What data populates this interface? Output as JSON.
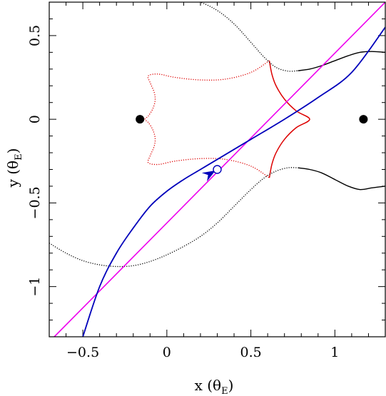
{
  "chart_data": {
    "type": "scatter",
    "title": "",
    "xlabel": "x (θ_E)",
    "ylabel": "y (θ_E)",
    "xlabel_parts": {
      "main": "x (θ",
      "sub": "E",
      "close": ")"
    },
    "ylabel_parts": {
      "main": "y (θ",
      "sub": "E",
      "close": ")"
    },
    "xlim": [
      -0.7,
      1.3
    ],
    "ylim": [
      -1.3,
      0.7
    ],
    "x_ticks": [
      {
        "value": -0.5,
        "label": "−0.5"
      },
      {
        "value": 0,
        "label": "0"
      },
      {
        "value": 0.5,
        "label": "0.5"
      },
      {
        "value": 1,
        "label": "1"
      }
    ],
    "y_ticks": [
      {
        "value": 0.5,
        "label": "0.5"
      },
      {
        "value": 0,
        "label": "0"
      },
      {
        "value": -0.5,
        "label": "−0.5"
      },
      {
        "value": -1,
        "label": "−1"
      }
    ],
    "grid": false,
    "lenses": [
      {
        "x": -0.16,
        "y": 0.0
      },
      {
        "x": 1.17,
        "y": 0.0
      }
    ],
    "source_position": {
      "x": 0.3,
      "y": -0.3
    },
    "colors": {
      "caustic": "#dd0000",
      "critical_curve": "#000000",
      "trajectory": "#0000bb",
      "straight_line": "#ee00ee",
      "lens": "#000000"
    },
    "series": [
      {
        "kind": "caustic",
        "solid_points": [
          [
            0.61,
            0.35
          ],
          [
            0.625,
            0.27
          ],
          [
            0.65,
            0.2
          ],
          [
            0.7,
            0.12
          ],
          [
            0.77,
            0.05
          ],
          [
            0.85,
            0.0
          ],
          [
            0.77,
            -0.05
          ],
          [
            0.7,
            -0.12
          ],
          [
            0.65,
            -0.2
          ],
          [
            0.625,
            -0.27
          ],
          [
            0.61,
            -0.35
          ]
        ],
        "dotted_points": [
          [
            0.61,
            0.35
          ],
          [
            0.5,
            0.28
          ],
          [
            0.35,
            0.24
          ],
          [
            0.2,
            0.235
          ],
          [
            0.05,
            0.25
          ],
          [
            -0.05,
            0.27
          ],
          [
            -0.11,
            0.26
          ],
          [
            -0.1,
            0.22
          ],
          [
            -0.075,
            0.16
          ],
          [
            -0.07,
            0.11
          ],
          [
            -0.085,
            0.06
          ],
          [
            -0.11,
            0.02
          ],
          [
            -0.13,
            0.0
          ],
          [
            -0.11,
            -0.02
          ],
          [
            -0.085,
            -0.06
          ],
          [
            -0.07,
            -0.11
          ],
          [
            -0.075,
            -0.16
          ],
          [
            -0.1,
            -0.22
          ],
          [
            -0.11,
            -0.26
          ],
          [
            -0.05,
            -0.27
          ],
          [
            0.05,
            -0.25
          ],
          [
            0.2,
            -0.235
          ],
          [
            0.35,
            -0.24
          ],
          [
            0.5,
            -0.28
          ],
          [
            0.61,
            -0.35
          ]
        ]
      },
      {
        "kind": "critical_curve_upper",
        "dotted_points": [
          [
            0.05,
            0.75
          ],
          [
            0.2,
            0.7
          ],
          [
            0.3,
            0.65
          ],
          [
            0.4,
            0.57
          ],
          [
            0.5,
            0.46
          ],
          [
            0.58,
            0.37
          ],
          [
            0.65,
            0.31
          ],
          [
            0.72,
            0.288
          ],
          [
            0.78,
            0.29
          ]
        ],
        "solid_points": [
          [
            0.78,
            0.29
          ],
          [
            0.85,
            0.3
          ],
          [
            0.92,
            0.32
          ],
          [
            1.0,
            0.35
          ],
          [
            1.08,
            0.38
          ],
          [
            1.15,
            0.4
          ],
          [
            1.22,
            0.405
          ],
          [
            1.3,
            0.4
          ]
        ]
      },
      {
        "kind": "critical_curve_lower",
        "dotted_points": [
          [
            -0.7,
            -0.74
          ],
          [
            -0.6,
            -0.8
          ],
          [
            -0.5,
            -0.845
          ],
          [
            -0.4,
            -0.87
          ],
          [
            -0.3,
            -0.88
          ],
          [
            -0.2,
            -0.875
          ],
          [
            -0.1,
            -0.85
          ],
          [
            0.0,
            -0.81
          ],
          [
            0.1,
            -0.76
          ],
          [
            0.2,
            -0.7
          ],
          [
            0.3,
            -0.62
          ],
          [
            0.4,
            -0.52
          ],
          [
            0.5,
            -0.42
          ],
          [
            0.58,
            -0.35
          ],
          [
            0.65,
            -0.31
          ],
          [
            0.72,
            -0.29
          ],
          [
            0.78,
            -0.29
          ]
        ],
        "solid_points": [
          [
            0.78,
            -0.29
          ],
          [
            0.85,
            -0.3
          ],
          [
            0.92,
            -0.32
          ],
          [
            1.0,
            -0.36
          ],
          [
            1.08,
            -0.4
          ],
          [
            1.15,
            -0.42
          ],
          [
            1.22,
            -0.41
          ],
          [
            1.3,
            -0.4
          ]
        ]
      },
      {
        "kind": "straight_line",
        "points": [
          [
            -0.67,
            -1.3
          ],
          [
            1.3,
            0.7
          ]
        ]
      },
      {
        "kind": "trajectory",
        "points": [
          [
            -0.5,
            -1.3
          ],
          [
            -0.4,
            -1.0
          ],
          [
            -0.3,
            -0.8
          ],
          [
            -0.2,
            -0.65
          ],
          [
            -0.1,
            -0.52
          ],
          [
            0.0,
            -0.43
          ],
          [
            0.1,
            -0.36
          ],
          [
            0.2,
            -0.3
          ],
          [
            0.3,
            -0.24
          ],
          [
            0.5,
            -0.12
          ],
          [
            0.7,
            0.0
          ],
          [
            0.9,
            0.13
          ],
          [
            1.1,
            0.28
          ],
          [
            1.3,
            0.55
          ]
        ]
      }
    ]
  }
}
